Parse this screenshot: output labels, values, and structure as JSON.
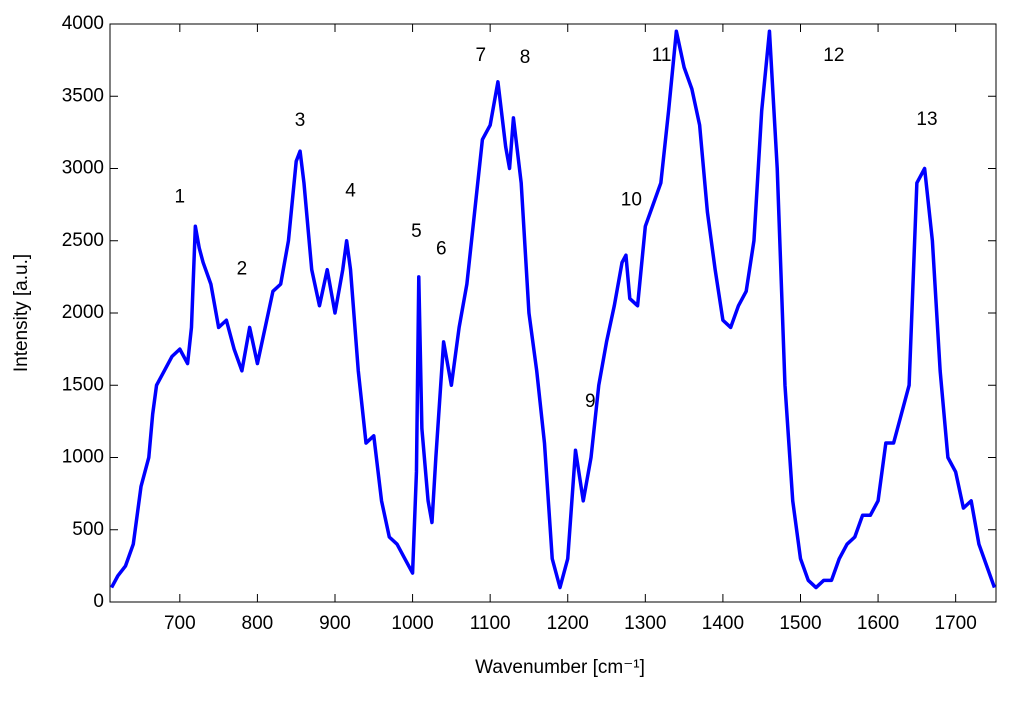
{
  "chart_data": {
    "type": "line",
    "x_label": "Wavenumber [cm⁻¹]",
    "y_label": "Intensity [a.u.]",
    "color": "#0000ff",
    "grid": false,
    "xlim": [
      610,
      1752
    ],
    "ylim": [
      0,
      4000
    ],
    "xticks": [
      700,
      800,
      900,
      1000,
      1100,
      1200,
      1300,
      1400,
      1500,
      1600,
      1700
    ],
    "yticks": [
      0,
      500,
      1000,
      1500,
      2000,
      2500,
      3000,
      3500,
      4000
    ],
    "x": [
      612,
      620,
      630,
      640,
      650,
      660,
      665,
      670,
      680,
      690,
      700,
      710,
      715,
      720,
      725,
      730,
      740,
      750,
      760,
      770,
      780,
      790,
      800,
      810,
      820,
      830,
      840,
      850,
      855,
      860,
      870,
      880,
      890,
      900,
      910,
      915,
      920,
      930,
      940,
      950,
      960,
      970,
      980,
      990,
      1000,
      1005,
      1008,
      1012,
      1020,
      1025,
      1030,
      1040,
      1050,
      1060,
      1070,
      1080,
      1090,
      1100,
      1110,
      1120,
      1125,
      1130,
      1140,
      1150,
      1160,
      1170,
      1180,
      1190,
      1200,
      1210,
      1220,
      1230,
      1240,
      1250,
      1260,
      1270,
      1275,
      1280,
      1290,
      1300,
      1310,
      1320,
      1330,
      1340,
      1350,
      1360,
      1370,
      1380,
      1390,
      1400,
      1410,
      1420,
      1430,
      1440,
      1450,
      1460,
      1470,
      1480,
      1490,
      1500,
      1510,
      1520,
      1530,
      1540,
      1550,
      1560,
      1570,
      1580,
      1590,
      1600,
      1610,
      1620,
      1630,
      1640,
      1650,
      1660,
      1670,
      1680,
      1690,
      1700,
      1710,
      1720,
      1730,
      1740,
      1750
    ],
    "values": [
      100,
      180,
      250,
      400,
      800,
      1000,
      1300,
      1500,
      1600,
      1700,
      1750,
      1650,
      1900,
      2600,
      2450,
      2350,
      2200,
      1900,
      1950,
      1750,
      1600,
      1900,
      1650,
      1900,
      2150,
      2200,
      2500,
      3050,
      3120,
      2900,
      2300,
      2050,
      2300,
      2000,
      2300,
      2500,
      2300,
      1600,
      1100,
      1150,
      700,
      450,
      400,
      300,
      200,
      900,
      2250,
      1200,
      700,
      550,
      1000,
      1800,
      1500,
      1900,
      2200,
      2700,
      3200,
      3300,
      3600,
      3150,
      3000,
      3350,
      2900,
      2000,
      1600,
      1100,
      300,
      100,
      300,
      1050,
      700,
      1000,
      1500,
      1800,
      2050,
      2350,
      2400,
      2100,
      2050,
      2600,
      2750,
      2900,
      3400,
      3950,
      3700,
      3550,
      3300,
      2700,
      2300,
      1950,
      1900,
      2050,
      2150,
      2500,
      3400,
      3950,
      3000,
      1500,
      700,
      300,
      150,
      100,
      150,
      150,
      300,
      400,
      450,
      600,
      600,
      700,
      1100,
      1100,
      1300,
      1500,
      2900,
      3000,
      2500,
      1600,
      1000,
      900,
      650,
      700,
      400,
      250,
      100
    ],
    "annotations": [
      {
        "text": "1",
        "x": 700,
        "y": 2800
      },
      {
        "text": "2",
        "x": 780,
        "y": 2300
      },
      {
        "text": "3",
        "x": 855,
        "y": 3330
      },
      {
        "text": "4",
        "x": 920,
        "y": 2840
      },
      {
        "text": "5",
        "x": 1005,
        "y": 2560
      },
      {
        "text": "6",
        "x": 1037,
        "y": 2440
      },
      {
        "text": "7",
        "x": 1088,
        "y": 3780
      },
      {
        "text": "8",
        "x": 1145,
        "y": 3765
      },
      {
        "text": "9",
        "x": 1229,
        "y": 1385
      },
      {
        "text": "10",
        "x": 1282,
        "y": 2780
      },
      {
        "text": "11",
        "x": 1321,
        "y": 3780
      },
      {
        "text": "12",
        "x": 1543,
        "y": 3780
      },
      {
        "text": "13",
        "x": 1663,
        "y": 3335
      }
    ]
  }
}
